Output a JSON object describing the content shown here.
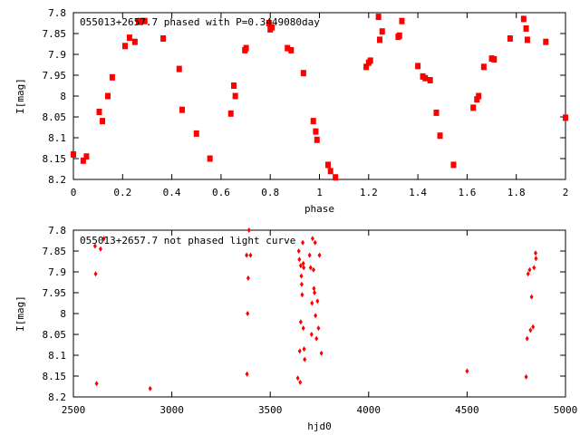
{
  "chart_data": [
    {
      "type": "scatter",
      "title": "055013+2657.7 phased with P=0.3449080day",
      "xlabel": "phase",
      "ylabel": "I[mag]",
      "xlim": [
        0,
        2
      ],
      "ylim": [
        8.2,
        7.8
      ],
      "y_inverted": true,
      "grid": false,
      "marker_color": "#ff0000",
      "marker": "star",
      "xticks": [
        0,
        0.2,
        0.4,
        0.6,
        0.8,
        1,
        1.2,
        1.4,
        1.6,
        1.8,
        2
      ],
      "xtick_labels": [
        "0",
        "0.2",
        "0.4",
        "0.6",
        "0.8",
        "1",
        "1.2",
        "1.4",
        "1.6",
        "1.8",
        "2"
      ],
      "yticks": [
        7.8,
        7.85,
        7.9,
        7.95,
        8,
        8.05,
        8.1,
        8.15,
        8.2
      ],
      "ytick_labels": [
        "7.8",
        "7.85",
        "7.9",
        "7.95",
        "8",
        "8.05",
        "8.1",
        "8.15",
        "8.2"
      ],
      "series": [
        {
          "x": [
            0.0,
            0.04,
            0.053,
            0.105,
            0.118,
            0.14,
            0.158,
            0.21,
            0.228,
            0.25,
            0.265,
            0.272,
            0.29,
            0.365,
            0.43,
            0.442,
            0.5,
            0.555,
            0.64,
            0.652,
            0.658,
            0.697,
            0.702,
            0.795,
            0.8,
            0.807,
            0.87,
            0.885,
            0.935,
            0.975,
            0.985,
            0.99,
            1.035,
            1.045,
            1.065,
            1.19,
            1.2,
            1.207,
            1.24,
            1.245,
            1.255,
            1.32,
            1.325,
            1.335,
            1.4,
            1.42,
            1.43,
            1.45,
            1.475,
            1.49,
            1.545,
            1.625,
            1.64,
            1.647,
            1.668,
            1.7,
            1.71,
            1.775,
            1.83,
            1.84,
            1.845,
            1.92,
            2.0
          ],
          "y": [
            8.14,
            8.155,
            8.145,
            8.038,
            8.06,
            8.0,
            7.955,
            7.88,
            7.86,
            7.87,
            7.822,
            7.82,
            7.82,
            7.862,
            7.935,
            8.033,
            8.09,
            8.15,
            8.042,
            7.975,
            8.0,
            7.89,
            7.885,
            7.825,
            7.84,
            7.835,
            7.885,
            7.89,
            7.945,
            8.06,
            8.085,
            8.105,
            8.165,
            8.18,
            8.195,
            7.93,
            7.92,
            7.915,
            7.81,
            7.865,
            7.845,
            7.858,
            7.855,
            7.82,
            7.928,
            7.953,
            7.957,
            7.962,
            8.04,
            8.095,
            8.165,
            8.028,
            8.008,
            8.0,
            7.93,
            7.91,
            7.912,
            7.862,
            7.815,
            7.838,
            7.865,
            7.87,
            8.052
          ]
        }
      ]
    },
    {
      "type": "scatter",
      "title": "055013+2657.7 not phased light curve",
      "xlabel": "hjd0",
      "ylabel": "I[mag]",
      "xlim": [
        2500,
        5000
      ],
      "ylim": [
        8.2,
        7.8
      ],
      "y_inverted": true,
      "grid": false,
      "marker_color": "#ff0000",
      "marker": "diamond",
      "xticks": [
        2500,
        3000,
        3500,
        4000,
        4500,
        5000
      ],
      "xtick_labels": [
        "2500",
        "3000",
        "3500",
        "4000",
        "4500",
        "5000"
      ],
      "yticks": [
        7.8,
        7.85,
        7.9,
        7.95,
        8,
        8.05,
        8.1,
        8.15,
        8.2
      ],
      "ytick_labels": [
        "7.8",
        "7.85",
        "7.9",
        "7.95",
        "8",
        "8.05",
        "8.1",
        "8.15",
        "8.2"
      ],
      "series": [
        {
          "x": [
            2610,
            2613,
            2618,
            2638,
            2655,
            2890,
            3380,
            3382,
            3385,
            3388,
            3392,
            3400,
            3640,
            3645,
            3648,
            3650,
            3652,
            3655,
            3655,
            3658,
            3660,
            3662,
            3665,
            3668,
            3668,
            3670,
            3672,
            3675,
            3700,
            3705,
            3710,
            3712,
            3715,
            3720,
            3722,
            3725,
            3728,
            3730,
            3735,
            3740,
            3745,
            3750,
            3760,
            4500,
            4800,
            4805,
            4810,
            4818,
            4822,
            4828,
            4835,
            4840,
            4848,
            4850
          ],
          "y": [
            7.838,
            7.905,
            8.168,
            7.845,
            7.82,
            8.18,
            7.86,
            8.145,
            8.0,
            7.915,
            7.8,
            7.86,
            8.155,
            7.85,
            7.87,
            8.09,
            8.165,
            7.885,
            8.02,
            7.91,
            7.93,
            7.955,
            7.83,
            8.035,
            7.88,
            7.89,
            8.085,
            8.11,
            7.86,
            7.89,
            8.05,
            7.975,
            7.82,
            7.895,
            7.94,
            7.95,
            7.83,
            8.005,
            8.06,
            7.97,
            8.035,
            7.86,
            8.095,
            8.138,
            8.152,
            8.06,
            7.905,
            7.895,
            8.04,
            7.96,
            8.032,
            7.89,
            7.855,
            7.868
          ]
        }
      ]
    }
  ]
}
